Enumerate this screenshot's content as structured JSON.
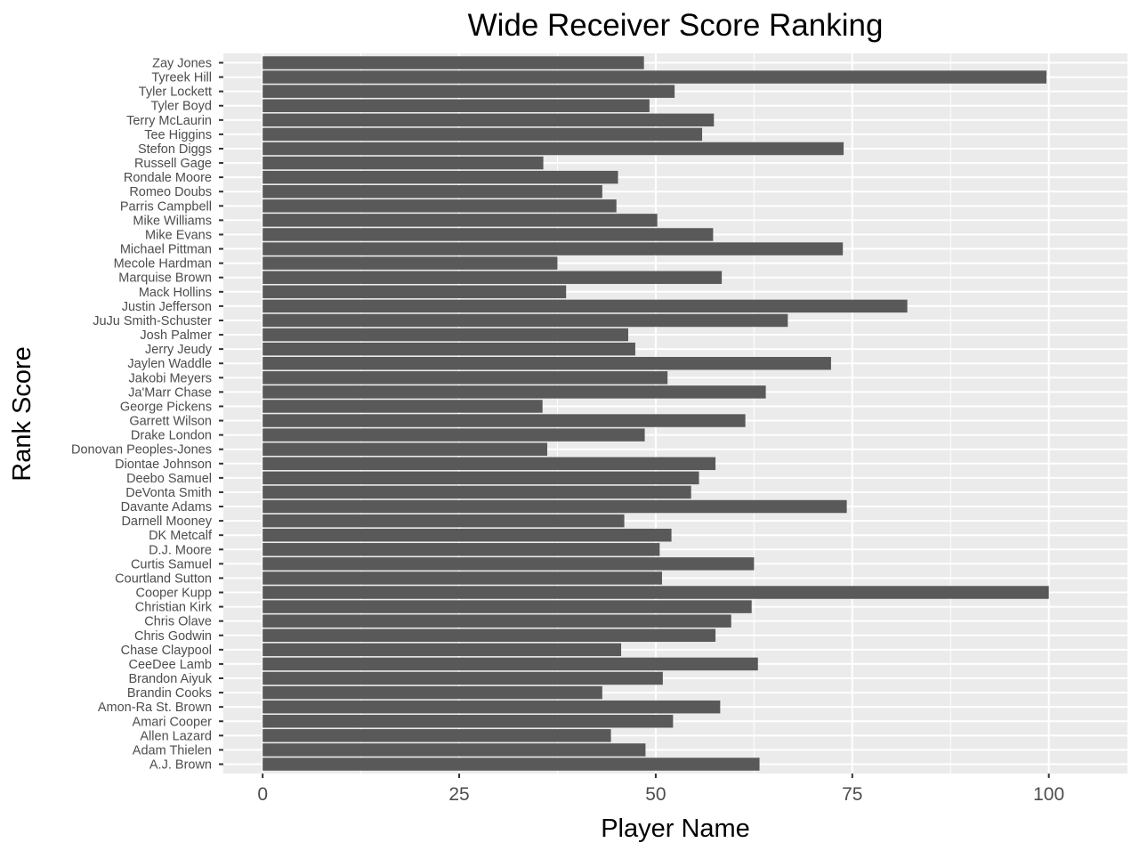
{
  "chart_data": {
    "type": "bar",
    "orientation": "horizontal",
    "title": "Wide Receiver Score Ranking",
    "xlabel": "Player Name",
    "ylabel": "Rank Score",
    "xlim": [
      -5,
      110
    ],
    "xticks": [
      0,
      25,
      50,
      75,
      100
    ],
    "grid": true,
    "colors": {
      "panel": "#ebebeb",
      "grid": "#ffffff",
      "bar": "#595959",
      "text": "#4d4d4d",
      "title": "#000000"
    },
    "categories": [
      "Zay Jones",
      "Tyreek Hill",
      "Tyler Lockett",
      "Tyler Boyd",
      "Terry McLaurin",
      "Tee Higgins",
      "Stefon Diggs",
      "Russell Gage",
      "Rondale Moore",
      "Romeo Doubs",
      "Parris Campbell",
      "Mike Williams",
      "Mike Evans",
      "Michael Pittman",
      "Mecole Hardman",
      "Marquise Brown",
      "Mack Hollins",
      "Justin Jefferson",
      "JuJu Smith-Schuster",
      "Josh Palmer",
      "Jerry Jeudy",
      "Jaylen Waddle",
      "Jakobi Meyers",
      "Ja'Marr Chase",
      "George Pickens",
      "Garrett Wilson",
      "Drake London",
      "Donovan Peoples-Jones",
      "Diontae Johnson",
      "Deebo Samuel",
      "DeVonta Smith",
      "Davante Adams",
      "Darnell Mooney",
      "DK Metcalf",
      "D.J. Moore",
      "Curtis Samuel",
      "Courtland Sutton",
      "Cooper Kupp",
      "Christian Kirk",
      "Chris Olave",
      "Chris Godwin",
      "Chase Claypool",
      "CeeDee Lamb",
      "Brandon Aiyuk",
      "Brandin Cooks",
      "Amon-Ra St. Brown",
      "Amari Cooper",
      "Allen Lazard",
      "Adam Thielen",
      "A.J. Brown"
    ],
    "values": [
      48.5,
      99.7,
      52.4,
      49.2,
      57.4,
      55.9,
      73.9,
      35.7,
      45.2,
      43.2,
      45.0,
      50.2,
      57.3,
      73.8,
      37.5,
      58.4,
      38.6,
      82.0,
      66.8,
      46.5,
      47.4,
      72.3,
      51.5,
      64.0,
      35.6,
      61.4,
      48.6,
      36.2,
      57.6,
      55.5,
      54.5,
      74.3,
      46.0,
      52.0,
      50.5,
      62.5,
      50.8,
      100.0,
      62.2,
      59.6,
      57.6,
      45.6,
      63.0,
      50.9,
      43.2,
      58.2,
      52.2,
      44.3,
      48.7,
      63.2
    ]
  }
}
